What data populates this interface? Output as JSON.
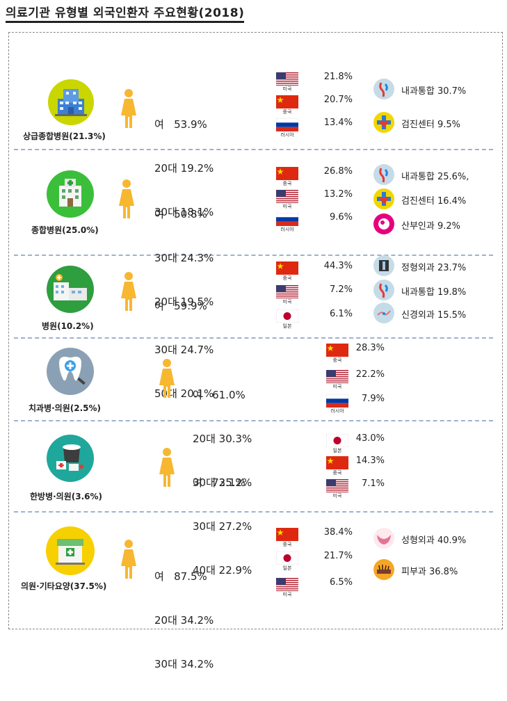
{
  "title": "의료기관 유형별 외국인환자 주요현황(2018)",
  "sections": [
    {
      "category": "상급종합병원(21.3%)",
      "stats": [
        "여   53.9%",
        "20대 19.2%",
        "30대 18.1%"
      ],
      "countries": [
        {
          "flag": "us",
          "name": "미국",
          "pct": "21.8%"
        },
        {
          "flag": "cn",
          "name": "중국",
          "pct": "20.7%"
        },
        {
          "flag": "ru",
          "name": "러시아",
          "pct": "13.4%"
        }
      ],
      "depts": [
        {
          "icon": "internal-medicine-icon",
          "label": "내과통합 30.7%"
        },
        {
          "icon": "checkup-center-icon",
          "label": "검진센터 9.5%"
        }
      ]
    },
    {
      "category": "종합병원(25.0%)",
      "stats": [
        "여   50.8%",
        "30대 24.3%",
        "20대 19.5%"
      ],
      "countries": [
        {
          "flag": "cn",
          "name": "중국",
          "pct": "26.8%"
        },
        {
          "flag": "us",
          "name": "미국",
          "pct": "13.2%"
        },
        {
          "flag": "ru",
          "name": "러시아",
          "pct": "9.6%"
        }
      ],
      "depts": [
        {
          "icon": "internal-medicine-icon",
          "label": "내과통합 25.6%,"
        },
        {
          "icon": "checkup-center-icon",
          "label": "검진센터 16.4%"
        },
        {
          "icon": "obstetrics-icon",
          "label": "산부인과 9.2%"
        }
      ]
    },
    {
      "category": "병원(10.2%)",
      "stats": [
        "여   59.9%",
        "30대 24.7%",
        "50대 20.1%"
      ],
      "countries": [
        {
          "flag": "cn",
          "name": "중국",
          "pct": "44.3%"
        },
        {
          "flag": "us",
          "name": "미국",
          "pct": "7.2%"
        },
        {
          "flag": "jp",
          "name": "일본",
          "pct": "6.1%"
        }
      ],
      "depts": [
        {
          "icon": "orthopedics-icon",
          "label": "정형외과 23.7%"
        },
        {
          "icon": "internal-medicine-icon",
          "label": "내과통합 19.8%"
        },
        {
          "icon": "neurosurgery-icon",
          "label": "신경외과 15.5%"
        }
      ]
    },
    {
      "category": "치과병·의원(2.5%)",
      "stats": [
        "여   61.0%",
        "20대 30.3%",
        "30대 25.2%"
      ],
      "countries": [
        {
          "flag": "cn",
          "name": "중국",
          "pct": "28.3%"
        },
        {
          "flag": "us",
          "name": "미국",
          "pct": "22.2%"
        },
        {
          "flag": "ru",
          "name": "러시아",
          "pct": "7.9%"
        }
      ],
      "depts": []
    },
    {
      "category": "한방병·의원(3.6%)",
      "stats": [
        "여   73.1%",
        "30대 27.2%",
        "40대 22.9%"
      ],
      "countries": [
        {
          "flag": "jp",
          "name": "일본",
          "pct": "43.0%"
        },
        {
          "flag": "cn",
          "name": "중국",
          "pct": "14.3%"
        },
        {
          "flag": "us",
          "name": "미국",
          "pct": "7.1%"
        }
      ],
      "depts": []
    },
    {
      "category": "의원·기타요양(37.5%)",
      "stats": [
        "여   87.5%",
        "20대 34.2%",
        "30대 34.2%"
      ],
      "countries": [
        {
          "flag": "cn",
          "name": "중국",
          "pct": "38.4%"
        },
        {
          "flag": "jp",
          "name": "일본",
          "pct": "21.7%"
        },
        {
          "flag": "us",
          "name": "미국",
          "pct": "6.5%"
        }
      ],
      "depts": [
        {
          "icon": "plastic-surgery-icon",
          "label": "성형외과 40.9%"
        },
        {
          "icon": "dermatology-icon",
          "label": "피부과 36.8%"
        }
      ]
    }
  ],
  "colors": {
    "female_icon": "#f7b731",
    "circle_1": "#c9d600",
    "circle_2": "#3bbf3b",
    "circle_3": "#2e9e3f",
    "circle_4": "#8aa1b5",
    "circle_5": "#1fa79c",
    "circle_6": "#f6d000",
    "dept_circle": "#c5dbe8",
    "checkup_circle": "#f2d600",
    "obgyn_circle": "#e6007e",
    "derma_circle": "#f5a623"
  }
}
